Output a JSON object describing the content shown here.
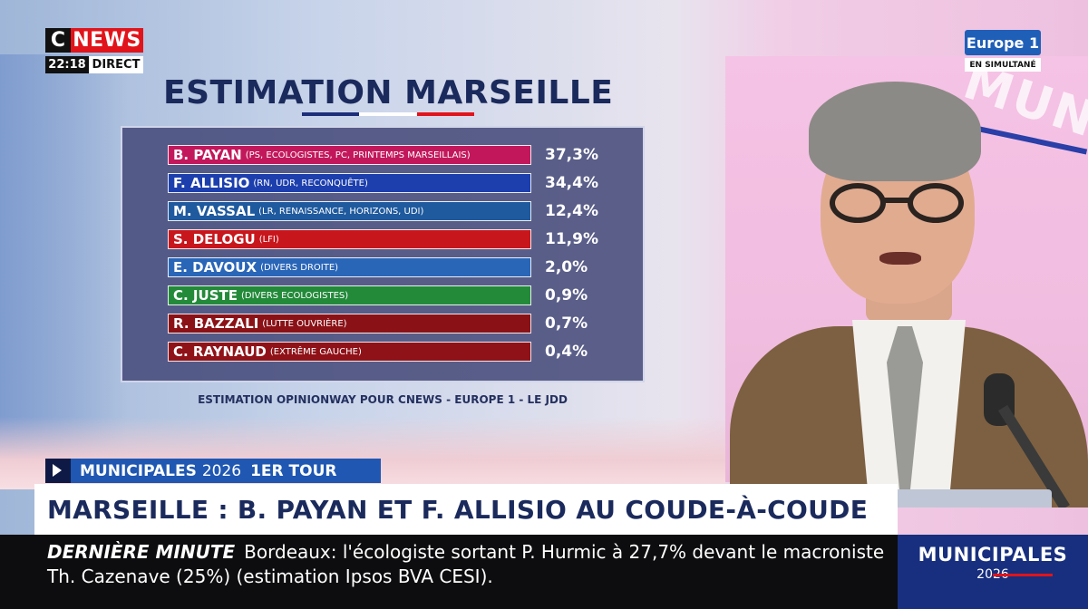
{
  "channel": {
    "logo_c": "C",
    "logo_news": "NEWS",
    "time": "22:18",
    "live_label": "DIRECT"
  },
  "partner": {
    "logo": "Europe 1",
    "simulcast": "EN SIMULTANÉ"
  },
  "studio": {
    "wall_text": "MUNI"
  },
  "estimation": {
    "title": "ESTIMATION MARSEILLE",
    "source": "ESTIMATION OPINIONWAY POUR CNEWS - EUROPE 1 - LE JDD",
    "candidates": [
      {
        "name": "B. PAYAN",
        "party": "(PS, ECOLOGISTES, PC, PRINTEMPS MARSEILLAIS)",
        "percent": "37,3%",
        "color": "#c2185b"
      },
      {
        "name": "F. ALLISIO",
        "party": "(RN, UDR, RECONQUÊTE)",
        "percent": "34,4%",
        "color": "#1d3fae"
      },
      {
        "name": "M. VASSAL",
        "party": "(LR, RENAISSANCE, HORIZONS, UDI)",
        "percent": "12,4%",
        "color": "#1f5a9e"
      },
      {
        "name": "S. DELOGU",
        "party": "(LFI)",
        "percent": "11,9%",
        "color": "#c8161d"
      },
      {
        "name": "E. DAVOUX",
        "party": "(DIVERS DROITE)",
        "percent": "2,0%",
        "color": "#2a66b8"
      },
      {
        "name": "C. JUSTE",
        "party": "(DIVERS ECOLOGISTES)",
        "percent": "0,9%",
        "color": "#238a3a"
      },
      {
        "name": "R. BAZZALI",
        "party": "(LUTTE OUVRIÈRE)",
        "percent": "0,7%",
        "color": "#8a1217"
      },
      {
        "name": "C. RAYNAUD",
        "party": "(EXTRÊME GAUCHE)",
        "percent": "0,4%",
        "color": "#8f1218"
      }
    ]
  },
  "lower_third": {
    "topic_main": "MUNICIPALES",
    "topic_year": "2026",
    "topic_round": "1ER TOUR",
    "headline": "MARSEILLE : B. PAYAN ET F. ALLISIO AU COUDE-À-COUDE"
  },
  "ticker": {
    "tag": "DERNIÈRE MINUTE",
    "text": "Bordeaux: l'écologiste sortant P. Hurmic à 27,7% devant le macroniste Th. Cazenave (25%) (estimation Ipsos BVA CESI)."
  },
  "program_box": {
    "title": "MUNICIPALES",
    "year": "2026"
  }
}
